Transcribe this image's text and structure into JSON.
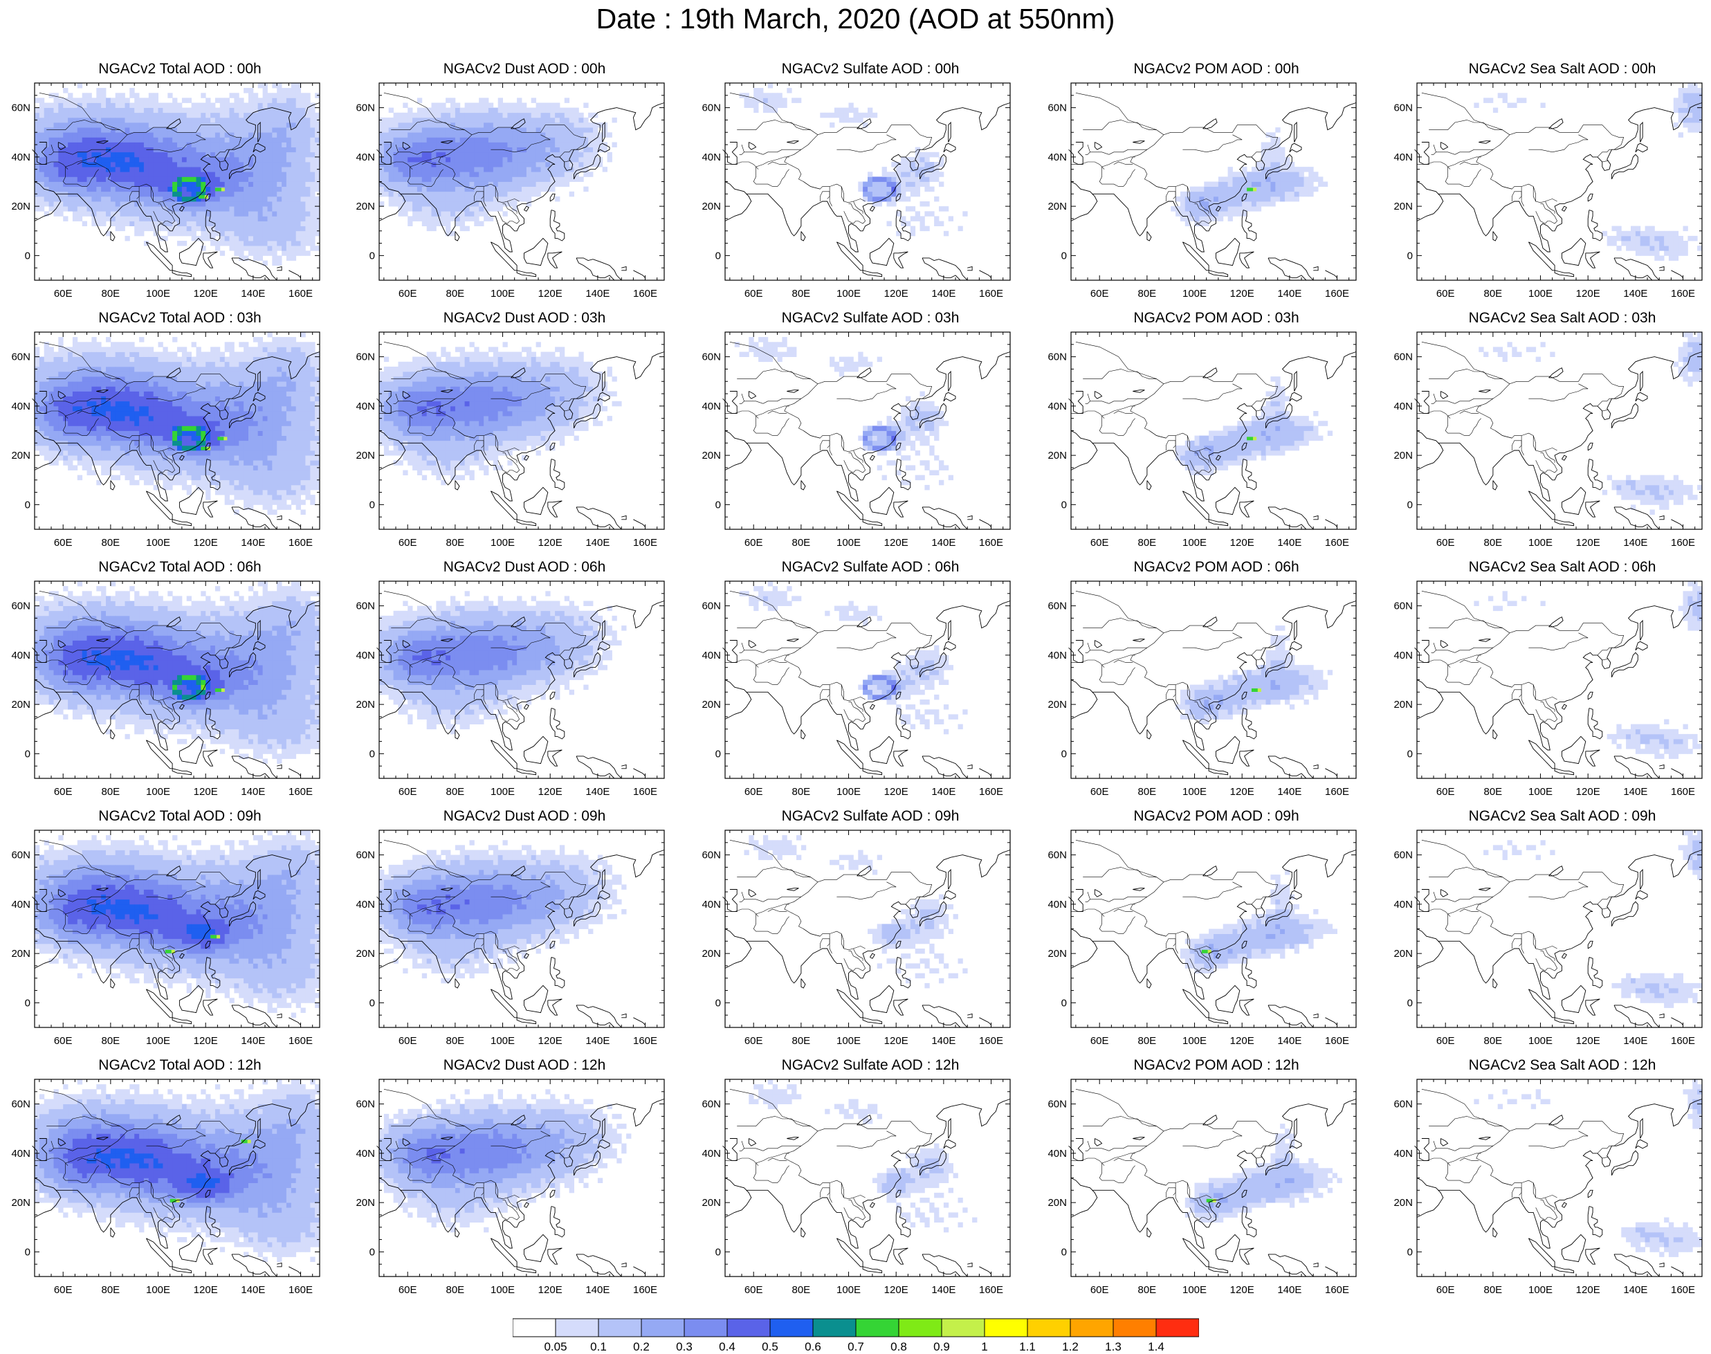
{
  "title": "Date : 19th March, 2020 (AOD at 550nm)",
  "panels": [
    {
      "label": "NGACv2 Total AOD : 00h",
      "species": "total",
      "hour": 0
    },
    {
      "label": "NGACv2 Dust AOD : 00h",
      "species": "dust",
      "hour": 0
    },
    {
      "label": "NGACv2 Sulfate AOD : 00h",
      "species": "sulfate",
      "hour": 0
    },
    {
      "label": "NGACv2 POM AOD : 00h",
      "species": "pom",
      "hour": 0
    },
    {
      "label": "NGACv2 Sea Salt AOD : 00h",
      "species": "seasalt",
      "hour": 0
    },
    {
      "label": "NGACv2 Total AOD : 03h",
      "species": "total",
      "hour": 3
    },
    {
      "label": "NGACv2 Dust AOD : 03h",
      "species": "dust",
      "hour": 3
    },
    {
      "label": "NGACv2 Sulfate AOD : 03h",
      "species": "sulfate",
      "hour": 3
    },
    {
      "label": "NGACv2 POM AOD : 03h",
      "species": "pom",
      "hour": 3
    },
    {
      "label": "NGACv2 Sea Salt AOD : 03h",
      "species": "seasalt",
      "hour": 3
    },
    {
      "label": "NGACv2 Total AOD : 06h",
      "species": "total",
      "hour": 6
    },
    {
      "label": "NGACv2 Dust AOD : 06h",
      "species": "dust",
      "hour": 6
    },
    {
      "label": "NGACv2 Sulfate AOD : 06h",
      "species": "sulfate",
      "hour": 6
    },
    {
      "label": "NGACv2 POM AOD : 06h",
      "species": "pom",
      "hour": 6
    },
    {
      "label": "NGACv2 Sea Salt AOD : 06h",
      "species": "seasalt",
      "hour": 6
    },
    {
      "label": "NGACv2 Total AOD : 09h",
      "species": "total",
      "hour": 9
    },
    {
      "label": "NGACv2 Dust AOD : 09h",
      "species": "dust",
      "hour": 9
    },
    {
      "label": "NGACv2 Sulfate AOD : 09h",
      "species": "sulfate",
      "hour": 9
    },
    {
      "label": "NGACv2 POM AOD : 09h",
      "species": "pom",
      "hour": 9
    },
    {
      "label": "NGACv2 Sea Salt  AOD : 09h",
      "species": "seasalt",
      "hour": 9
    },
    {
      "label": "NGACv2 Total AOD  : 12h",
      "species": "total",
      "hour": 12
    },
    {
      "label": "NGACv2 Dust AOD : 12h",
      "species": "dust",
      "hour": 12
    },
    {
      "label": "NGACv2 Sulfate AOD : 12h",
      "species": "sulfate",
      "hour": 12
    },
    {
      "label": "NGACv2 POM  AOD : 12h",
      "species": "pom",
      "hour": 12
    },
    {
      "label": "NGACv2 Sea Salt  AOD : 12h",
      "species": "seasalt",
      "hour": 12
    }
  ],
  "axes": {
    "lon_ticks": [
      60,
      80,
      100,
      120,
      140,
      160
    ],
    "lon_labels": [
      "60E",
      "80E",
      "100E",
      "120E",
      "140E",
      "160E"
    ],
    "lat_ticks": [
      0,
      20,
      40,
      60
    ],
    "lat_labels": [
      "0",
      "20N",
      "40N",
      "60N"
    ],
    "lon_range": [
      48,
      168
    ],
    "lat_range": [
      -10,
      70
    ]
  },
  "colorbar": {
    "colors": [
      "#ffffff",
      "#d5dcfb",
      "#b4c3f8",
      "#95a9f4",
      "#7b8df0",
      "#5a63e8",
      "#1f5ff0",
      "#0a8f8f",
      "#35d435",
      "#7fea16",
      "#c4f04a",
      "#ffff00",
      "#ffd000",
      "#ffa500",
      "#ff7f00",
      "#ff2d10"
    ],
    "labels": [
      "0.05",
      "0.1",
      "0.2",
      "0.3",
      "0.4",
      "0.5",
      "0.6",
      "0.7",
      "0.8",
      "0.9",
      "1",
      "1.1",
      "1.2",
      "1.3",
      "1.4"
    ]
  },
  "coastline_color": "#000000"
}
